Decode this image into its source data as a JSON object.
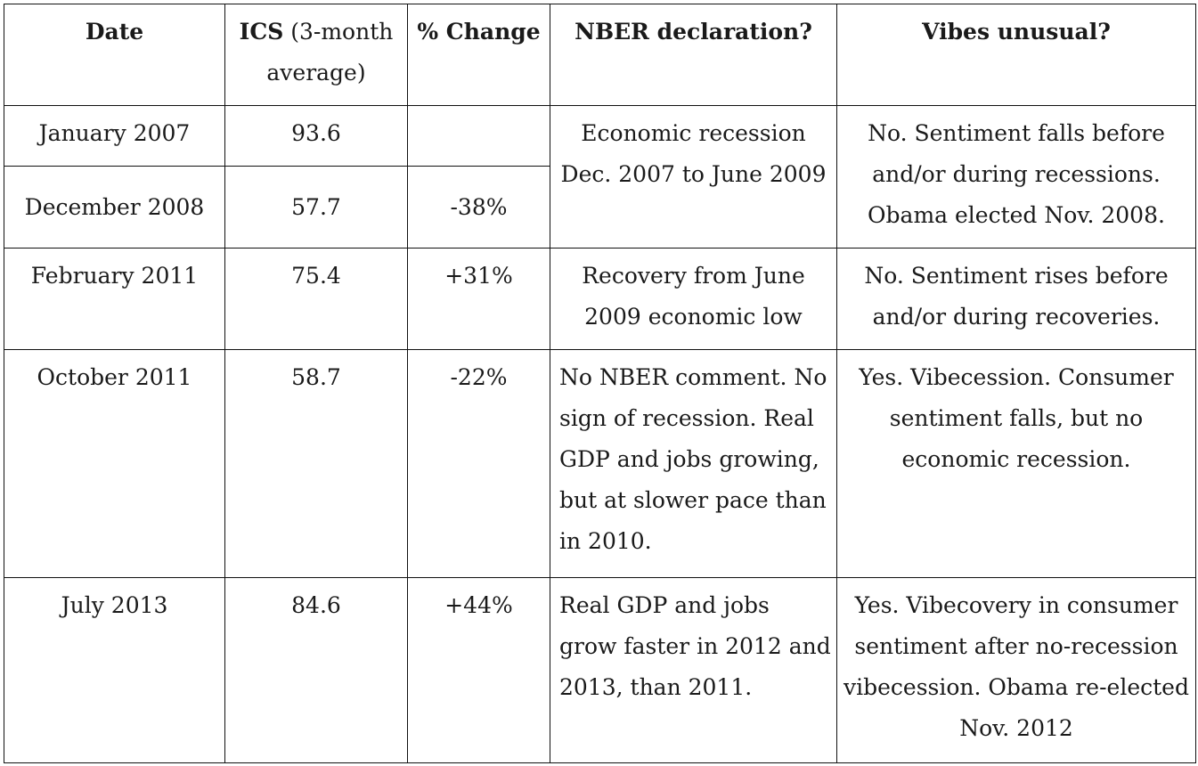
{
  "headers": {
    "date": "Date",
    "ics_bold": "ICS",
    "ics_rest": " (3-month average)",
    "change": "% Change",
    "nber": "NBER declaration?",
    "vibes": "Vibes unusual?"
  },
  "rows": [
    {
      "date": "January 2007",
      "ics": "93.6",
      "change": ""
    },
    {
      "date": "December 2008",
      "ics": "57.7",
      "change": "-38%"
    },
    {
      "date": "February 2011",
      "ics": "75.4",
      "change": "+31%"
    },
    {
      "date": "October 2011",
      "ics": "58.7",
      "change": "-22%"
    },
    {
      "date": "July 2013",
      "ics": "84.6",
      "change": "+44%"
    }
  ],
  "merged": {
    "nber_recession": "Economic recession Dec. 2007 to June 2009",
    "vibes_recession": "No. Sentiment falls before and/or during recessions. Obama elected Nov. 2008."
  },
  "row3": {
    "nber": "Recovery from June 2009 economic low",
    "vibes": "No. Sentiment rises before and/or during recoveries."
  },
  "row4": {
    "nber": "No NBER comment. No sign of recession. Real GDP and jobs growing, but at slower pace than in 2010.",
    "vibes": "Yes. Vibecession. Consumer sentiment falls,  but no economic recession."
  },
  "row5": {
    "nber": "Real GDP and jobs grow faster in 2012 and 2013, than 2011.",
    "vibes": "Yes. Vibecovery in consumer sentiment after no-recession vibecession. Obama re-elected Nov. 2012"
  }
}
